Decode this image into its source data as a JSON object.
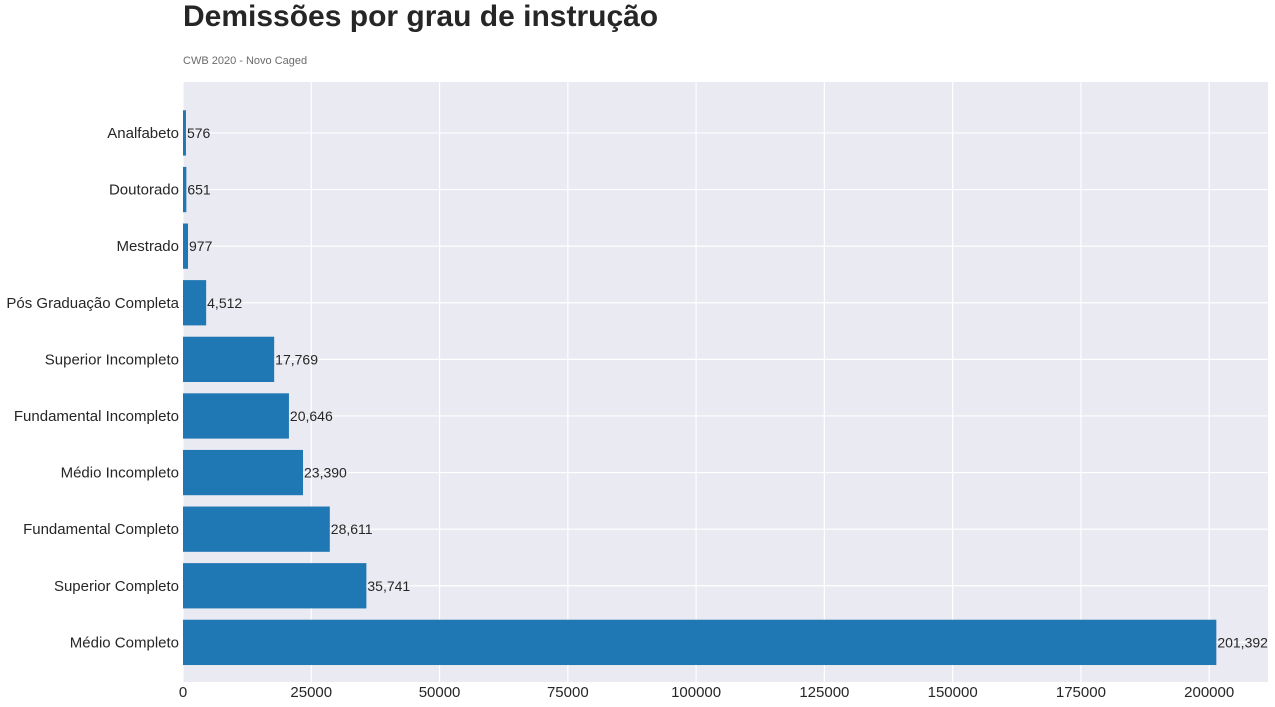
{
  "chart_data": {
    "type": "bar",
    "orientation": "horizontal",
    "title": "Demissões por grau de instrução",
    "subtitle": "CWB 2020 - Novo Caged",
    "categories": [
      "Analfabeto",
      "Doutorado",
      "Mestrado",
      "Pós Graduação Completa",
      "Superior Incompleto",
      "Fundamental Incompleto",
      "Médio Incompleto",
      "Fundamental Completo",
      "Superior Completo",
      "Médio Completo"
    ],
    "values": [
      576,
      651,
      977,
      4512,
      17769,
      20646,
      23390,
      28611,
      35741,
      201392
    ],
    "value_labels": [
      "576",
      "651",
      "977",
      "4,512",
      "17,769",
      "20,646",
      "23,390",
      "28,611",
      "35,741",
      "201,392"
    ],
    "xticks": [
      0,
      25000,
      50000,
      75000,
      100000,
      125000,
      150000,
      175000,
      200000
    ],
    "xtick_labels": [
      "0",
      "25000",
      "50000",
      "75000",
      "100000",
      "125000",
      "150000",
      "175000",
      "200000"
    ],
    "xlim": [
      0,
      211462
    ],
    "xlabel": "",
    "ylabel": "",
    "grid": true,
    "bar_color": "#1f77b4",
    "plot_background": "#eaeaf2",
    "grid_color": "#ffffff"
  }
}
